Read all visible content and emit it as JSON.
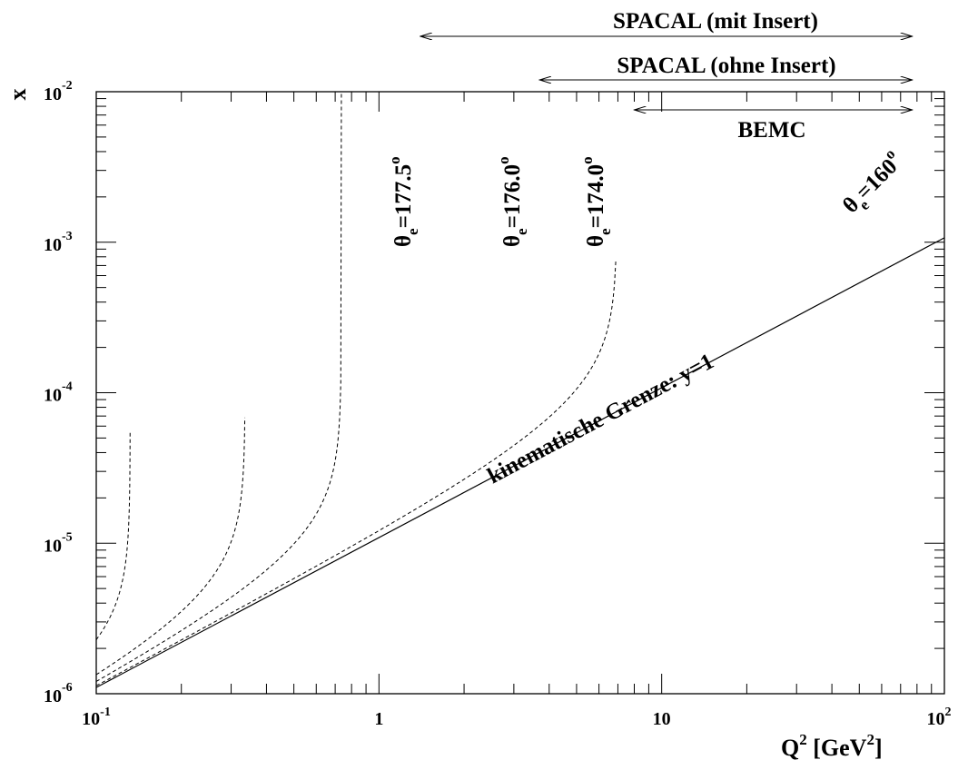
{
  "chart_data": {
    "type": "line",
    "xscale": "log",
    "yscale": "log",
    "xlim": [
      0.1,
      100
    ],
    "ylim": [
      1e-06,
      0.01
    ],
    "grid": false,
    "xlabel_main": "Q",
    "xlabel_sup": "2",
    "xlabel_rest": " [GeV",
    "xlabel_sup2": "2",
    "xlabel_end": "]",
    "ylabel": "x",
    "x_ticks": [
      {
        "value": 0.1,
        "base": "10",
        "exp": "-1"
      },
      {
        "value": 1,
        "base": "1",
        "exp": ""
      },
      {
        "value": 10,
        "base": "10",
        "exp": ""
      },
      {
        "value": 100,
        "base": "10",
        "exp": "2"
      }
    ],
    "y_ticks": [
      {
        "value": 1e-06,
        "base": "10",
        "exp": "-6"
      },
      {
        "value": 1e-05,
        "base": "10",
        "exp": "-5"
      },
      {
        "value": 0.0001,
        "base": "10",
        "exp": "-4"
      },
      {
        "value": 0.001,
        "base": "10",
        "exp": "-3"
      },
      {
        "value": 0.01,
        "base": "10",
        "exp": "-2"
      }
    ],
    "kinematic_limit": {
      "label": "kinematische Grenze: y=1",
      "x": [
        0.1,
        100
      ],
      "y": [
        1.1e-06,
        0.00107
      ]
    },
    "angle_curves": [
      {
        "theta_base": "θ",
        "theta_sub": "e",
        "theta_value": "=177.5",
        "theta_deg": "o",
        "angle_deg": 177.5,
        "k": 1.45e-06
      },
      {
        "theta_base": "θ",
        "theta_sub": "e",
        "theta_value": "=176.0",
        "theta_deg": "o",
        "angle_deg": 176.0,
        "k": 3.7e-06
      },
      {
        "theta_base": "θ",
        "theta_sub": "e",
        "theta_value": "=174.0",
        "theta_deg": "o",
        "angle_deg": 174.0,
        "k": 8.1e-06
      },
      {
        "theta_base": "θ",
        "theta_sub": "e",
        "theta_value": "=160",
        "theta_deg": "o",
        "angle_deg": 160,
        "k": 7.65e-05
      }
    ],
    "ranges": [
      {
        "label": "SPACAL (mit Insert)",
        "from": 1.4,
        "to": 77
      },
      {
        "label": "SPACAL (ohne Insert)",
        "from": 3.7,
        "to": 77
      },
      {
        "label": "BEMC",
        "from": 8,
        "to": 77
      }
    ]
  }
}
